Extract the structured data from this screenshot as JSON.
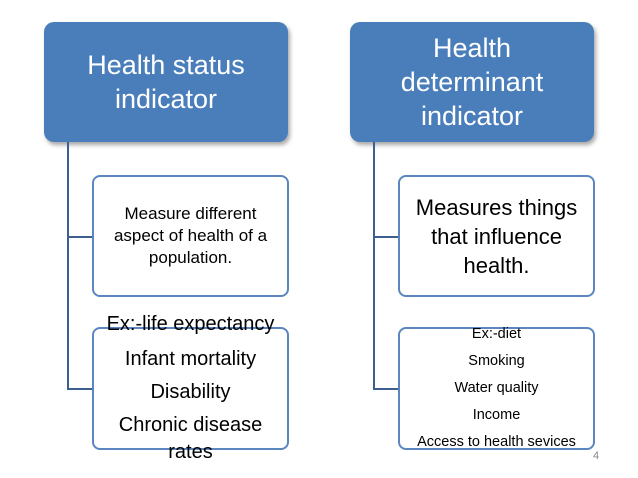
{
  "left": {
    "header": [
      "Health status",
      "indicator"
    ],
    "definition": [
      "Measure different",
      "aspect of health of a",
      "population."
    ],
    "examples": [
      "Ex:-life expectancy",
      "Infant mortality",
      "Disability",
      "Chronic disease rates"
    ]
  },
  "right": {
    "header": [
      "Health",
      "determinant",
      "indicator"
    ],
    "definition": [
      "Measures things",
      "that influence",
      "health."
    ],
    "examples": [
      "Ex:-diet",
      "Smoking",
      "Water quality",
      "Income",
      "Access to health sevices"
    ]
  },
  "page_number": "4",
  "colors": {
    "header": "#4a7ebb",
    "border": "#5b86c0",
    "connector": "#3d5f8f"
  }
}
